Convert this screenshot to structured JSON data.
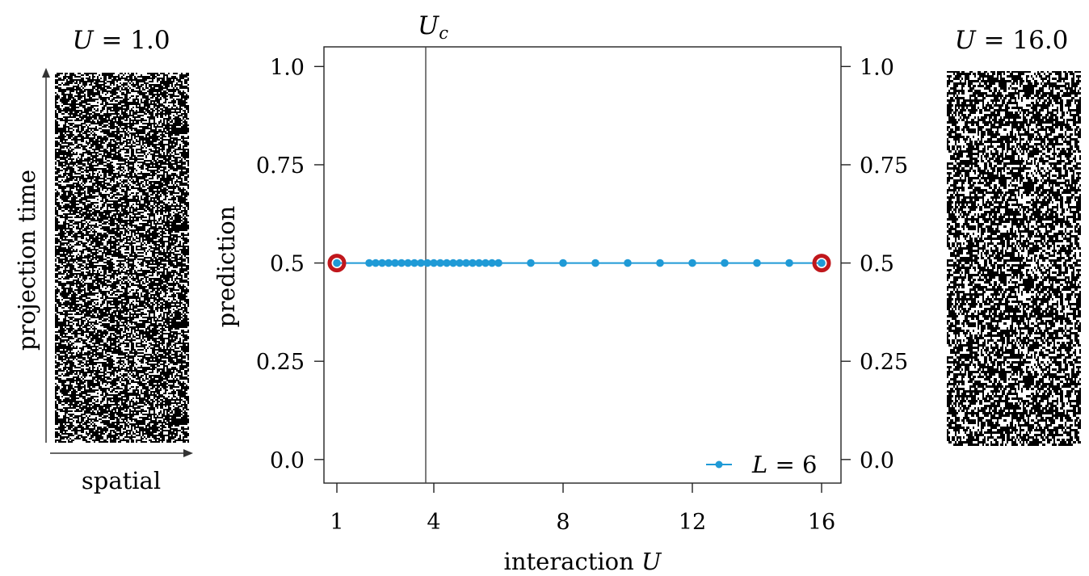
{
  "panels": {
    "left": {
      "title_var": "U",
      "title_rest": " = 1.0",
      "y_axis_label": "projection time",
      "x_axis_label": "spatial"
    },
    "right": {
      "title_var": "U",
      "title_rest": " = 16.0"
    }
  },
  "colors": {
    "series": "#1f9ad6",
    "highlight": "#c0171c",
    "axis": "#222222",
    "critical_line": "#444444"
  },
  "chart_data": {
    "type": "line",
    "xlabel_prefix": "interaction ",
    "xlabel_var": "U",
    "ylabel": "prediction",
    "xlim": [
      0.6,
      16.6
    ],
    "ylim": [
      -0.06,
      1.05
    ],
    "xticks": [
      1,
      4,
      8,
      12,
      16
    ],
    "yticks": [
      0.0,
      0.25,
      0.5,
      0.75,
      1.0
    ],
    "ytick_labels": [
      "0.0",
      "0.25",
      "0.5",
      "0.75",
      "1.0"
    ],
    "critical": {
      "x": 3.75,
      "label_var": "U",
      "label_sub": "c"
    },
    "series": [
      {
        "name_var": "L",
        "name_rest": " = 6",
        "x": [
          1,
          2,
          2.2,
          2.4,
          2.6,
          2.8,
          3.0,
          3.2,
          3.4,
          3.6,
          3.8,
          4.0,
          4.2,
          4.4,
          4.6,
          4.8,
          5.0,
          5.2,
          5.4,
          5.6,
          5.8,
          6.0,
          7,
          8,
          9,
          10,
          11,
          12,
          13,
          14,
          15,
          16
        ],
        "y": [
          0.5,
          0.5,
          0.5,
          0.5,
          0.5,
          0.5,
          0.5,
          0.5,
          0.5,
          0.5,
          0.5,
          0.5,
          0.5,
          0.5,
          0.5,
          0.5,
          0.5,
          0.5,
          0.5,
          0.5,
          0.5,
          0.5,
          0.5,
          0.5,
          0.5,
          0.5,
          0.5,
          0.5,
          0.5,
          0.5,
          0.5,
          0.5
        ]
      }
    ],
    "highlighted_points": [
      {
        "x": 1,
        "y": 0.5
      },
      {
        "x": 16,
        "y": 0.5
      }
    ],
    "legend_position": "bottom-right",
    "grid": false
  }
}
